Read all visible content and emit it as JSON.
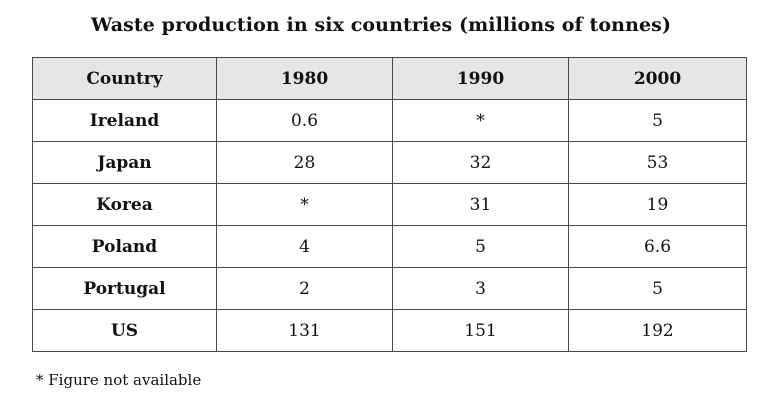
{
  "title": "Waste production in six countries (millions of tonnes)",
  "footnote": "* Figure not available",
  "chart_data": {
    "type": "table",
    "title": "Waste production in six countries (millions of tonnes)",
    "columns": [
      "Country",
      "1980",
      "1990",
      "2000"
    ],
    "rows": [
      {
        "country": "Ireland",
        "values": [
          "0.6",
          "*",
          "5"
        ]
      },
      {
        "country": "Japan",
        "values": [
          "28",
          "32",
          "53"
        ]
      },
      {
        "country": "Korea",
        "values": [
          "*",
          "31",
          "19"
        ]
      },
      {
        "country": "Poland",
        "values": [
          "4",
          "5",
          "6.6"
        ]
      },
      {
        "country": "Portugal",
        "values": [
          "2",
          "3",
          "5"
        ]
      },
      {
        "country": "US",
        "values": [
          "131",
          "151",
          "192"
        ]
      }
    ],
    "footnote": "* Figure not available"
  }
}
